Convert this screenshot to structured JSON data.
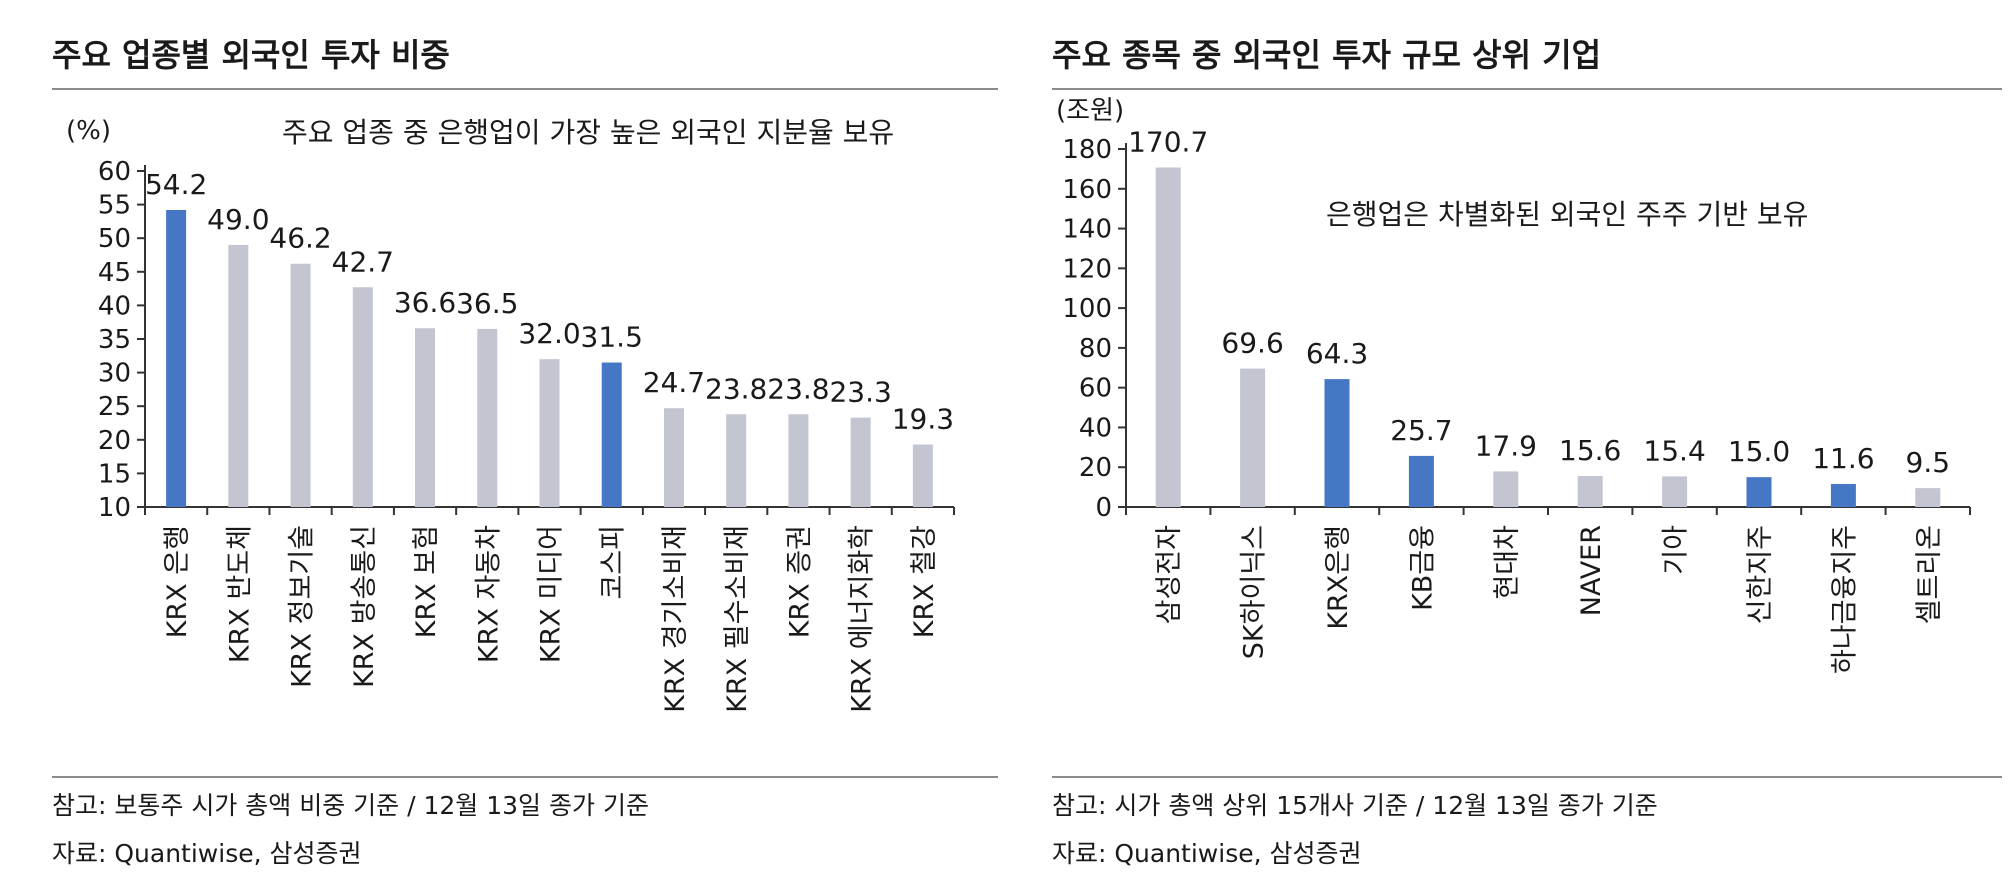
{
  "left": {
    "title": "주요 업종별 외국인 투자 비중",
    "note": "참고: 보통주 시가 총액 비중 기준 / 12월 13일 종가 기준",
    "source": "자료: Quantiwise, 삼성증권"
  },
  "right": {
    "title": "주요 종목 중 외국인 투자 규모 상위 기업",
    "note": "참고: 시가 총액 상위 15개사 기준 / 12월 13일 종가 기준",
    "source": "자료: Quantiwise, 삼성증권"
  },
  "colors": {
    "highlight": "#4677c4",
    "normal": "#c3c6d1",
    "axis": "#333333"
  },
  "chart_data": [
    {
      "type": "bar",
      "title": "주요 업종별 외국인 투자 비중",
      "unit": "(%)",
      "annotation": "주요 업종 중 은행업이 가장 높은 외국인 지분율 보유",
      "categories": [
        "KRX 은행",
        "KRX 반도체",
        "KRX 정보기술",
        "KRX 방송통신",
        "KRX 보험",
        "KRX 자동차",
        "KRX 미디어",
        "코스피",
        "KRX 경기소비재",
        "KRX 필수소비재",
        "KRX 증권",
        "KRX 에너지화학",
        "KRX 철강"
      ],
      "values": [
        54.2,
        49.0,
        46.2,
        42.7,
        36.6,
        36.5,
        32.0,
        31.5,
        24.7,
        23.8,
        23.8,
        23.3,
        19.3
      ],
      "value_labels": [
        "54.2",
        "49.0",
        "46.2",
        "42.7",
        "36.6",
        "36.5",
        "32.0",
        "31.5",
        "24.7",
        "23.8",
        "23.8",
        "23.3",
        "19.3"
      ],
      "highlight": [
        0,
        7
      ],
      "ylim": [
        10,
        60
      ],
      "yticks": [
        "10",
        "15",
        "20",
        "25",
        "30",
        "35",
        "40",
        "45",
        "50",
        "55",
        "60"
      ],
      "grid": false
    },
    {
      "type": "bar",
      "title": "주요 종목 중 외국인 투자 규모 상위 기업",
      "unit": "(조원)",
      "annotation": "은행업은 차별화된 외국인 주주 기반 보유",
      "categories": [
        "삼성전자",
        "SK하이닉스",
        "KRX은행",
        "KB금융",
        "현대차",
        "NAVER",
        "기아",
        "신한지주",
        "하나금융지주",
        "셀트리온"
      ],
      "values": [
        170.7,
        69.6,
        64.3,
        25.7,
        17.9,
        15.6,
        15.4,
        15.0,
        11.6,
        9.5
      ],
      "value_labels": [
        "170.7",
        "69.6",
        "64.3",
        "25.7",
        "17.9",
        "15.6",
        "15.4",
        "15.0",
        "11.6",
        "9.5"
      ],
      "highlight": [
        2,
        3,
        7,
        8
      ],
      "ylim": [
        0,
        180
      ],
      "yticks": [
        "0",
        "20",
        "40",
        "60",
        "80",
        "100",
        "120",
        "140",
        "160",
        "180"
      ],
      "grid": false
    }
  ]
}
